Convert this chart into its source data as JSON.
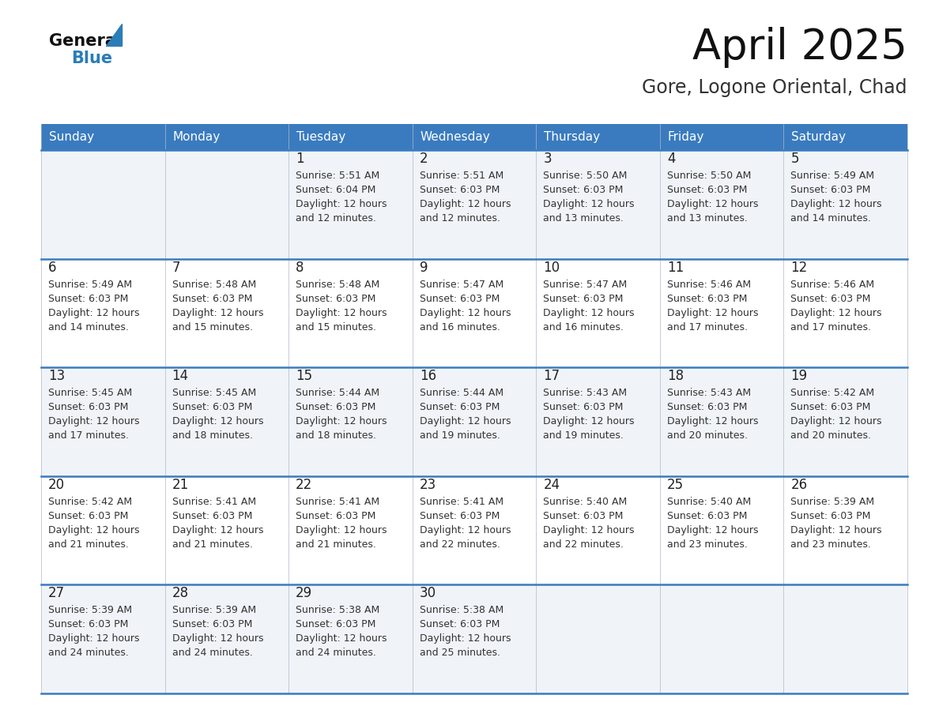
{
  "title": "April 2025",
  "subtitle": "Gore, Logone Oriental, Chad",
  "header_bg_color": "#3a7bbf",
  "header_text_color": "#ffffff",
  "days_of_week": [
    "Sunday",
    "Monday",
    "Tuesday",
    "Wednesday",
    "Thursday",
    "Friday",
    "Saturday"
  ],
  "row_bg_even": "#f0f4f8",
  "row_bg_odd": "#ffffff",
  "divider_color": "#3a7bbf",
  "cell_text_color": "#333333",
  "day_num_color": "#222222",
  "logo_general_color": "#111111",
  "logo_blue_color": "#2b7db8",
  "title_color": "#111111",
  "subtitle_color": "#333333",
  "calendar_data": [
    [
      {
        "day": null,
        "sunrise": null,
        "sunset": null,
        "daylight_hours": null,
        "daylight_minutes": null
      },
      {
        "day": null,
        "sunrise": null,
        "sunset": null,
        "daylight_hours": null,
        "daylight_minutes": null
      },
      {
        "day": 1,
        "sunrise": "5:51 AM",
        "sunset": "6:04 PM",
        "daylight_hours": 12,
        "daylight_minutes": 12
      },
      {
        "day": 2,
        "sunrise": "5:51 AM",
        "sunset": "6:03 PM",
        "daylight_hours": 12,
        "daylight_minutes": 12
      },
      {
        "day": 3,
        "sunrise": "5:50 AM",
        "sunset": "6:03 PM",
        "daylight_hours": 12,
        "daylight_minutes": 13
      },
      {
        "day": 4,
        "sunrise": "5:50 AM",
        "sunset": "6:03 PM",
        "daylight_hours": 12,
        "daylight_minutes": 13
      },
      {
        "day": 5,
        "sunrise": "5:49 AM",
        "sunset": "6:03 PM",
        "daylight_hours": 12,
        "daylight_minutes": 14
      }
    ],
    [
      {
        "day": 6,
        "sunrise": "5:49 AM",
        "sunset": "6:03 PM",
        "daylight_hours": 12,
        "daylight_minutes": 14
      },
      {
        "day": 7,
        "sunrise": "5:48 AM",
        "sunset": "6:03 PM",
        "daylight_hours": 12,
        "daylight_minutes": 15
      },
      {
        "day": 8,
        "sunrise": "5:48 AM",
        "sunset": "6:03 PM",
        "daylight_hours": 12,
        "daylight_minutes": 15
      },
      {
        "day": 9,
        "sunrise": "5:47 AM",
        "sunset": "6:03 PM",
        "daylight_hours": 12,
        "daylight_minutes": 16
      },
      {
        "day": 10,
        "sunrise": "5:47 AM",
        "sunset": "6:03 PM",
        "daylight_hours": 12,
        "daylight_minutes": 16
      },
      {
        "day": 11,
        "sunrise": "5:46 AM",
        "sunset": "6:03 PM",
        "daylight_hours": 12,
        "daylight_minutes": 17
      },
      {
        "day": 12,
        "sunrise": "5:46 AM",
        "sunset": "6:03 PM",
        "daylight_hours": 12,
        "daylight_minutes": 17
      }
    ],
    [
      {
        "day": 13,
        "sunrise": "5:45 AM",
        "sunset": "6:03 PM",
        "daylight_hours": 12,
        "daylight_minutes": 17
      },
      {
        "day": 14,
        "sunrise": "5:45 AM",
        "sunset": "6:03 PM",
        "daylight_hours": 12,
        "daylight_minutes": 18
      },
      {
        "day": 15,
        "sunrise": "5:44 AM",
        "sunset": "6:03 PM",
        "daylight_hours": 12,
        "daylight_minutes": 18
      },
      {
        "day": 16,
        "sunrise": "5:44 AM",
        "sunset": "6:03 PM",
        "daylight_hours": 12,
        "daylight_minutes": 19
      },
      {
        "day": 17,
        "sunrise": "5:43 AM",
        "sunset": "6:03 PM",
        "daylight_hours": 12,
        "daylight_minutes": 19
      },
      {
        "day": 18,
        "sunrise": "5:43 AM",
        "sunset": "6:03 PM",
        "daylight_hours": 12,
        "daylight_minutes": 20
      },
      {
        "day": 19,
        "sunrise": "5:42 AM",
        "sunset": "6:03 PM",
        "daylight_hours": 12,
        "daylight_minutes": 20
      }
    ],
    [
      {
        "day": 20,
        "sunrise": "5:42 AM",
        "sunset": "6:03 PM",
        "daylight_hours": 12,
        "daylight_minutes": 21
      },
      {
        "day": 21,
        "sunrise": "5:41 AM",
        "sunset": "6:03 PM",
        "daylight_hours": 12,
        "daylight_minutes": 21
      },
      {
        "day": 22,
        "sunrise": "5:41 AM",
        "sunset": "6:03 PM",
        "daylight_hours": 12,
        "daylight_minutes": 21
      },
      {
        "day": 23,
        "sunrise": "5:41 AM",
        "sunset": "6:03 PM",
        "daylight_hours": 12,
        "daylight_minutes": 22
      },
      {
        "day": 24,
        "sunrise": "5:40 AM",
        "sunset": "6:03 PM",
        "daylight_hours": 12,
        "daylight_minutes": 22
      },
      {
        "day": 25,
        "sunrise": "5:40 AM",
        "sunset": "6:03 PM",
        "daylight_hours": 12,
        "daylight_minutes": 23
      },
      {
        "day": 26,
        "sunrise": "5:39 AM",
        "sunset": "6:03 PM",
        "daylight_hours": 12,
        "daylight_minutes": 23
      }
    ],
    [
      {
        "day": 27,
        "sunrise": "5:39 AM",
        "sunset": "6:03 PM",
        "daylight_hours": 12,
        "daylight_minutes": 24
      },
      {
        "day": 28,
        "sunrise": "5:39 AM",
        "sunset": "6:03 PM",
        "daylight_hours": 12,
        "daylight_minutes": 24
      },
      {
        "day": 29,
        "sunrise": "5:38 AM",
        "sunset": "6:03 PM",
        "daylight_hours": 12,
        "daylight_minutes": 24
      },
      {
        "day": 30,
        "sunrise": "5:38 AM",
        "sunset": "6:03 PM",
        "daylight_hours": 12,
        "daylight_minutes": 25
      },
      {
        "day": null,
        "sunrise": null,
        "sunset": null,
        "daylight_hours": null,
        "daylight_minutes": null
      },
      {
        "day": null,
        "sunrise": null,
        "sunset": null,
        "daylight_hours": null,
        "daylight_minutes": null
      },
      {
        "day": null,
        "sunrise": null,
        "sunset": null,
        "daylight_hours": null,
        "daylight_minutes": null
      }
    ]
  ]
}
